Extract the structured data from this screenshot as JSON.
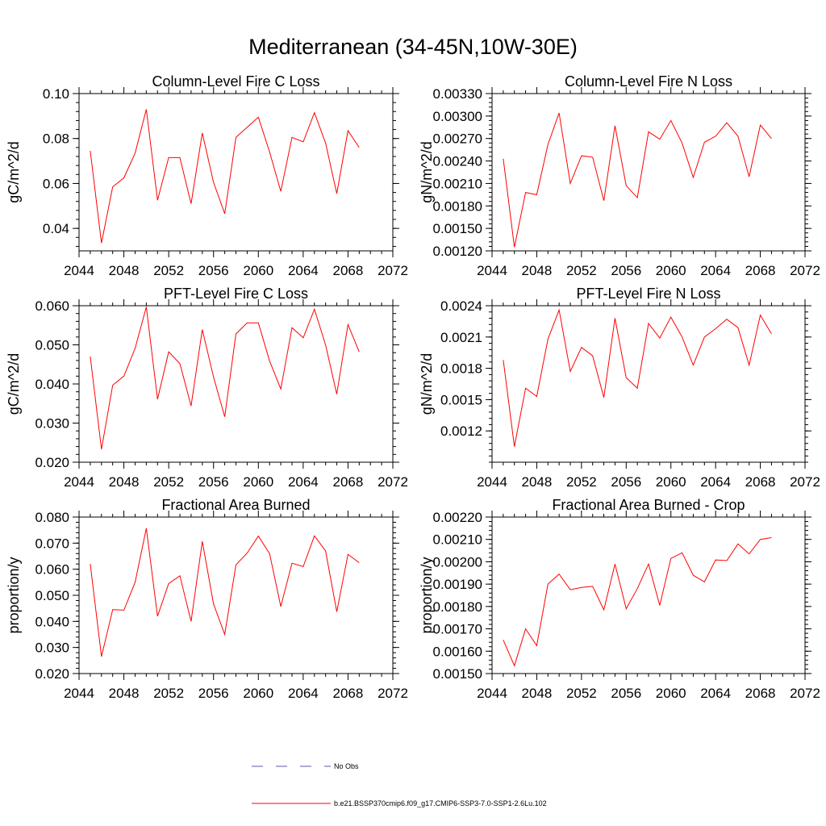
{
  "title": "Mediterranean (34-45N,10W-30E)",
  "colors": {
    "model": "#ff0000",
    "obs": "#5a5aa8",
    "axis": "#000000"
  },
  "legend": {
    "obs_label": "No Obs",
    "model_label": "b.e21.BSSP370cmip6.f09_g17.CMIP6-SSP3-7.0-SSP1-2.6Lu.102"
  },
  "chart_data": [
    {
      "type": "line",
      "title": "Column-Level Fire C Loss",
      "ylabel": "gC/m^2/d",
      "xlim": [
        2044,
        2072
      ],
      "ylim": [
        0.03,
        0.1
      ],
      "xticks": [
        "2044",
        "2048",
        "2052",
        "2056",
        "2060",
        "2064",
        "2068",
        "2072"
      ],
      "yticks": [
        "0.04",
        "0.06",
        "0.08",
        "0.10"
      ],
      "x": [
        2045,
        2046,
        2047,
        2048,
        2049,
        2050,
        2051,
        2052,
        2053,
        2054,
        2055,
        2056,
        2057,
        2058,
        2059,
        2060,
        2061,
        2062,
        2063,
        2064,
        2065,
        2066,
        2067,
        2068,
        2069
      ],
      "series": [
        {
          "name": "b.e21.BSSP370cmip6.f09_g17.CMIP6-SSP3-7.0-SSP1-2.6Lu.102",
          "values": [
            0.0745,
            0.0335,
            0.0585,
            0.0625,
            0.0735,
            0.093,
            0.0525,
            0.0715,
            0.0715,
            0.051,
            0.0825,
            0.0605,
            0.0465,
            0.0805,
            0.085,
            0.0895,
            0.074,
            0.0565,
            0.0805,
            0.0785,
            0.0915,
            0.078,
            0.0555,
            0.0835,
            0.076
          ]
        }
      ]
    },
    {
      "type": "line",
      "title": "Column-Level Fire N Loss",
      "ylabel": "gN/m^2/d",
      "xlim": [
        2044,
        2072
      ],
      "ylim": [
        0.0012,
        0.0033
      ],
      "xticks": [
        "2044",
        "2048",
        "2052",
        "2056",
        "2060",
        "2064",
        "2068",
        "2072"
      ],
      "yticks": [
        "0.00120",
        "0.00150",
        "0.00180",
        "0.00210",
        "0.00240",
        "0.00270",
        "0.00300",
        "0.00330"
      ],
      "x": [
        2045,
        2046,
        2047,
        2048,
        2049,
        2050,
        2051,
        2052,
        2053,
        2054,
        2055,
        2056,
        2057,
        2058,
        2059,
        2060,
        2061,
        2062,
        2063,
        2064,
        2065,
        2066,
        2067,
        2068,
        2069
      ],
      "series": [
        {
          "name": "b.e21.BSSP370cmip6.f09_g17.CMIP6-SSP3-7.0-SSP1-2.6Lu.102",
          "values": [
            0.00243,
            0.00125,
            0.00198,
            0.00195,
            0.00262,
            0.00304,
            0.0021,
            0.00247,
            0.00245,
            0.00187,
            0.00287,
            0.00207,
            0.00191,
            0.00279,
            0.00269,
            0.00294,
            0.00264,
            0.00218,
            0.00265,
            0.00273,
            0.00291,
            0.00273,
            0.00219,
            0.00288,
            0.0027
          ]
        }
      ]
    },
    {
      "type": "line",
      "title": "PFT-Level Fire C Loss",
      "ylabel": "gC/m^2/d",
      "xlim": [
        2044,
        2072
      ],
      "ylim": [
        0.02,
        0.06
      ],
      "xticks": [
        "2044",
        "2048",
        "2052",
        "2056",
        "2060",
        "2064",
        "2068",
        "2072"
      ],
      "yticks": [
        "0.020",
        "0.030",
        "0.040",
        "0.050",
        "0.060"
      ],
      "x": [
        2045,
        2046,
        2047,
        2048,
        2049,
        2050,
        2051,
        2052,
        2053,
        2054,
        2055,
        2056,
        2057,
        2058,
        2059,
        2060,
        2061,
        2062,
        2063,
        2064,
        2065,
        2066,
        2067,
        2068,
        2069
      ],
      "series": [
        {
          "name": "b.e21.BSSP370cmip6.f09_g17.CMIP6-SSP3-7.0-SSP1-2.6Lu.102",
          "values": [
            0.047,
            0.0233,
            0.0397,
            0.042,
            0.0491,
            0.0597,
            0.0361,
            0.0482,
            0.0452,
            0.0344,
            0.0539,
            0.0418,
            0.0316,
            0.0528,
            0.0556,
            0.0556,
            0.0459,
            0.0387,
            0.0544,
            0.0518,
            0.0591,
            0.05,
            0.0374,
            0.0552,
            0.0482
          ]
        }
      ]
    },
    {
      "type": "line",
      "title": "PFT-Level Fire N Loss",
      "ylabel": "gN/m^2/d",
      "xlim": [
        2044,
        2072
      ],
      "ylim": [
        0.0009,
        0.0024
      ],
      "xticks": [
        "2044",
        "2048",
        "2052",
        "2056",
        "2060",
        "2064",
        "2068",
        "2072"
      ],
      "yticks": [
        "0.0012",
        "0.0015",
        "0.0018",
        "0.0021",
        "0.0024"
      ],
      "x": [
        2045,
        2046,
        2047,
        2048,
        2049,
        2050,
        2051,
        2052,
        2053,
        2054,
        2055,
        2056,
        2057,
        2058,
        2059,
        2060,
        2061,
        2062,
        2063,
        2064,
        2065,
        2066,
        2067,
        2068,
        2069
      ],
      "series": [
        {
          "name": "b.e21.BSSP370cmip6.f09_g17.CMIP6-SSP3-7.0-SSP1-2.6Lu.102",
          "values": [
            0.00188,
            0.00105,
            0.00161,
            0.00153,
            0.00208,
            0.00236,
            0.00177,
            0.002,
            0.00192,
            0.00152,
            0.00228,
            0.00171,
            0.00161,
            0.00223,
            0.00209,
            0.00229,
            0.0021,
            0.00183,
            0.0021,
            0.00218,
            0.00227,
            0.00219,
            0.00183,
            0.00231,
            0.00213
          ]
        }
      ]
    },
    {
      "type": "line",
      "title": "Fractional Area Burned",
      "ylabel": "proportion/y",
      "xlim": [
        2044,
        2072
      ],
      "ylim": [
        0.02,
        0.08
      ],
      "xticks": [
        "2044",
        "2048",
        "2052",
        "2056",
        "2060",
        "2064",
        "2068",
        "2072"
      ],
      "yticks": [
        "0.020",
        "0.030",
        "0.040",
        "0.050",
        "0.060",
        "0.070",
        "0.080"
      ],
      "x": [
        2045,
        2046,
        2047,
        2048,
        2049,
        2050,
        2051,
        2052,
        2053,
        2054,
        2055,
        2056,
        2057,
        2058,
        2059,
        2060,
        2061,
        2062,
        2063,
        2064,
        2065,
        2066,
        2067,
        2068,
        2069
      ],
      "series": [
        {
          "name": "b.e21.BSSP370cmip6.f09_g17.CMIP6-SSP3-7.0-SSP1-2.6Lu.102",
          "values": [
            0.062,
            0.0265,
            0.0445,
            0.0443,
            0.055,
            0.0757,
            0.042,
            0.0545,
            0.0575,
            0.04,
            0.0707,
            0.0467,
            0.035,
            0.0617,
            0.0662,
            0.0727,
            0.066,
            0.0457,
            0.0623,
            0.061,
            0.0728,
            0.067,
            0.0437,
            0.0657,
            0.0625
          ]
        }
      ]
    },
    {
      "type": "line",
      "title": "Fractional Area Burned - Crop",
      "ylabel": "proportion/y",
      "xlim": [
        2044,
        2072
      ],
      "ylim": [
        0.0015,
        0.0022
      ],
      "xticks": [
        "2044",
        "2048",
        "2052",
        "2056",
        "2060",
        "2064",
        "2068",
        "2072"
      ],
      "yticks": [
        "0.00150",
        "0.00160",
        "0.00170",
        "0.00180",
        "0.00190",
        "0.00200",
        "0.00210",
        "0.00220"
      ],
      "x": [
        2045,
        2046,
        2047,
        2048,
        2049,
        2050,
        2051,
        2052,
        2053,
        2054,
        2055,
        2056,
        2057,
        2058,
        2059,
        2060,
        2061,
        2062,
        2063,
        2064,
        2065,
        2066,
        2067,
        2068,
        2069
      ],
      "series": [
        {
          "name": "b.e21.BSSP370cmip6.f09_g17.CMIP6-SSP3-7.0-SSP1-2.6Lu.102",
          "values": [
            0.00165,
            0.001535,
            0.0017,
            0.001625,
            0.0019,
            0.001945,
            0.001875,
            0.001885,
            0.00189,
            0.001785,
            0.00199,
            0.00179,
            0.00188,
            0.00199,
            0.001805,
            0.002015,
            0.00204,
            0.00194,
            0.00191,
            0.002008,
            0.002005,
            0.00208,
            0.002035,
            0.0021,
            0.002108
          ]
        }
      ]
    }
  ]
}
